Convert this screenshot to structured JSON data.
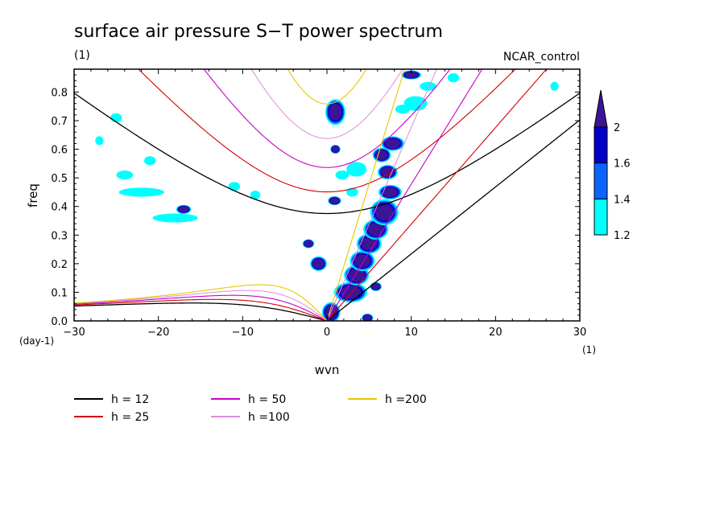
{
  "chart_data": {
    "type": "contour",
    "title": "surface air pressure S−T power spectrum",
    "left_subtitle": "(1)",
    "right_subtitle": "NCAR_control",
    "xlabel": "wvn",
    "ylabel": "freq",
    "x_unit": "(1)",
    "y_unit": "(day-1)",
    "xlim": [
      -30,
      30
    ],
    "ylim": [
      0,
      0.88
    ],
    "xticks": [
      -30,
      -20,
      -10,
      0,
      10,
      20,
      30
    ],
    "xtick_labels": [
      "−30",
      "−20",
      "−10",
      "0",
      "10",
      "20",
      "30"
    ],
    "yticks": [
      0.0,
      0.1,
      0.2,
      0.3,
      0.4,
      0.5,
      0.6,
      0.7,
      0.8
    ],
    "ytick_labels": [
      "0.0",
      "0.1",
      "0.2",
      "0.3",
      "0.4",
      "0.5",
      "0.6",
      "0.7",
      "0.8"
    ],
    "colorbar": {
      "levels": [
        1.2,
        1.4,
        1.6,
        2
      ],
      "labels": [
        "1.2",
        "1.4",
        "1.6",
        "2"
      ],
      "colors": [
        "#00ffff",
        "#0a64ff",
        "#0000c8",
        "#3c1496"
      ]
    },
    "dispersion_curves": [
      {
        "label": "h = 12",
        "h": 12,
        "color": "#000000",
        "width": 1.3
      },
      {
        "label": "h = 25",
        "h": 25,
        "color": "#d20000",
        "width": 1.1
      },
      {
        "label": "h = 50",
        "h": 50,
        "color": "#c800c8",
        "width": 1.1
      },
      {
        "label": "h =100",
        "h": 100,
        "color": "#dc8cdc",
        "width": 1.0
      },
      {
        "label": "h =200",
        "h": 200,
        "color": "#e6c800",
        "width": 1.1
      }
    ],
    "power_regions": [
      {
        "x": 2.8,
        "y": 0.1,
        "rx": 1.8,
        "ry": 0.03,
        "level": 4
      },
      {
        "x": 3.5,
        "y": 0.16,
        "rx": 1.3,
        "ry": 0.03,
        "level": 4
      },
      {
        "x": 4.2,
        "y": 0.21,
        "rx": 1.3,
        "ry": 0.03,
        "level": 4
      },
      {
        "x": 5.0,
        "y": 0.27,
        "rx": 1.3,
        "ry": 0.03,
        "level": 4
      },
      {
        "x": 5.8,
        "y": 0.32,
        "rx": 1.3,
        "ry": 0.03,
        "level": 4
      },
      {
        "x": 6.8,
        "y": 0.38,
        "rx": 1.5,
        "ry": 0.04,
        "level": 4
      },
      {
        "x": 7.5,
        "y": 0.45,
        "rx": 1.2,
        "ry": 0.02,
        "level": 4
      },
      {
        "x": 7.2,
        "y": 0.52,
        "rx": 1.0,
        "ry": 0.02,
        "level": 4
      },
      {
        "x": 7.8,
        "y": 0.62,
        "rx": 1.2,
        "ry": 0.02,
        "level": 4
      },
      {
        "x": 6.5,
        "y": 0.58,
        "rx": 0.9,
        "ry": 0.02,
        "level": 4
      },
      {
        "x": 0.5,
        "y": 0.03,
        "rx": 0.9,
        "ry": 0.03,
        "level": 4
      },
      {
        "x": 1.0,
        "y": 0.73,
        "rx": 1.0,
        "ry": 0.04,
        "level": 4
      },
      {
        "x": -1.0,
        "y": 0.2,
        "rx": 0.8,
        "ry": 0.02,
        "level": 4
      },
      {
        "x": -17.0,
        "y": 0.39,
        "rx": 0.7,
        "ry": 0.01,
        "level": 4
      },
      {
        "x": 0.9,
        "y": 0.42,
        "rx": 0.6,
        "ry": 0.01,
        "level": 4
      },
      {
        "x": 5.8,
        "y": 0.12,
        "rx": 0.5,
        "ry": 0.01,
        "level": 4
      },
      {
        "x": 4.8,
        "y": 0.01,
        "rx": 0.5,
        "ry": 0.01,
        "level": 4
      },
      {
        "x": 10.0,
        "y": 0.86,
        "rx": 1.0,
        "ry": 0.01,
        "level": 4
      },
      {
        "x": -2.2,
        "y": 0.27,
        "rx": 0.5,
        "ry": 0.01,
        "level": 4
      },
      {
        "x": 1.0,
        "y": 0.6,
        "rx": 0.4,
        "ry": 0.01,
        "level": 4
      },
      {
        "x": -18.0,
        "y": 0.36,
        "rx": 2.5,
        "ry": 0.01,
        "level": 1
      },
      {
        "x": -22.0,
        "y": 0.45,
        "rx": 2.5,
        "ry": 0.01,
        "level": 1
      },
      {
        "x": -25.0,
        "y": 0.71,
        "rx": 0.5,
        "ry": 0.01,
        "level": 1
      },
      {
        "x": -24.0,
        "y": 0.51,
        "rx": 0.8,
        "ry": 0.01,
        "level": 1
      },
      {
        "x": -21.0,
        "y": 0.56,
        "rx": 0.5,
        "ry": 0.01,
        "level": 1
      },
      {
        "x": -11.0,
        "y": 0.47,
        "rx": 0.5,
        "ry": 0.01,
        "level": 1
      },
      {
        "x": -8.5,
        "y": 0.44,
        "rx": 0.4,
        "ry": 0.01,
        "level": 1
      },
      {
        "x": 3.5,
        "y": 0.53,
        "rx": 1.0,
        "ry": 0.02,
        "level": 1
      },
      {
        "x": 1.8,
        "y": 0.51,
        "rx": 0.6,
        "ry": 0.01,
        "level": 1
      },
      {
        "x": 10.5,
        "y": 0.76,
        "rx": 1.2,
        "ry": 0.02,
        "level": 1
      },
      {
        "x": 12.0,
        "y": 0.82,
        "rx": 0.8,
        "ry": 0.01,
        "level": 1
      },
      {
        "x": 15.0,
        "y": 0.85,
        "rx": 0.5,
        "ry": 0.01,
        "level": 1
      },
      {
        "x": 9.0,
        "y": 0.74,
        "rx": 0.7,
        "ry": 0.01,
        "level": 1
      },
      {
        "x": 3.0,
        "y": 0.45,
        "rx": 0.5,
        "ry": 0.01,
        "level": 1
      },
      {
        "x": -27.0,
        "y": 0.63,
        "rx": 0.3,
        "ry": 0.01,
        "level": 1
      },
      {
        "x": 27.0,
        "y": 0.82,
        "rx": 0.3,
        "ry": 0.01,
        "level": 1
      }
    ]
  }
}
